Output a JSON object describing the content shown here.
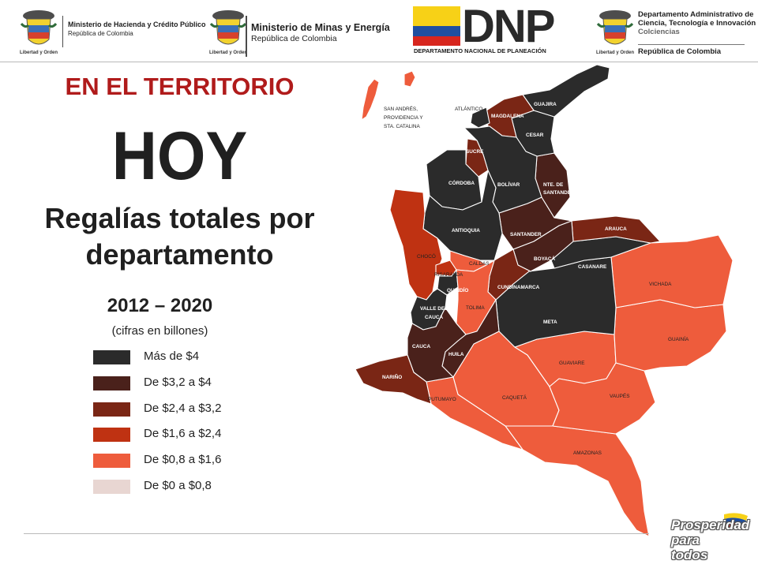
{
  "header": {
    "logos": [
      {
        "name": "Ministerio de Hacienda y Crédito Público",
        "line2": "República de Colombia",
        "seal_caption": "Libertad y Orden"
      },
      {
        "name": "Ministerio de Minas y Energía",
        "line2": "República de Colombia",
        "seal_caption": "Libertad y Orden"
      },
      {
        "name": "DNP",
        "line2": "DEPARTAMENTO NACIONAL DE PLANEACIÓN"
      },
      {
        "name": "Departamento Administrativo de Ciencia, Tecnología e Innovación",
        "name_l1": "Departamento Administrativo de",
        "name_l2": "Ciencia, Tecnología e Innovación",
        "name_l3": "Colciencias",
        "line2": "República de Colombia",
        "seal_caption": "Libertad y Orden"
      }
    ]
  },
  "titles": {
    "territorio": "EN EL TERRITORIO",
    "hoy": "HOY",
    "subtitle_l1": "Regalías totales por",
    "subtitle_l2": "departamento",
    "period": "2012 – 2020",
    "units": "(cifras en billones)"
  },
  "legend": [
    {
      "label": "Más de $4",
      "color": "#2b2b2b"
    },
    {
      "label": "De $3,2 a $4",
      "color": "#4a211b"
    },
    {
      "label": "De $2,4 a $3,2",
      "color": "#7a2615"
    },
    {
      "label": "De $1,6 a $2,4",
      "color": "#bf3212"
    },
    {
      "label": "De $0,8 a $1,6",
      "color": "#ee5c3c"
    },
    {
      "label": "De $0 a $0,8",
      "color": "#e8d6d2"
    }
  ],
  "map": {
    "labels": {
      "san_andres_l1": "SAN ANDRÉS,",
      "san_andres_l2": "PROVIDENCIA  Y",
      "san_andres_l3": "STA. CATALINA",
      "atlantico": "ATLÁNTICO",
      "guajira": "GUAJIRA",
      "magdalena": "MAGDALENA",
      "cesar": "CESAR",
      "sucre": "SUCRE",
      "cordoba": "CÓRDOBA",
      "bolivar": "BOLÍVAR",
      "nte_santander_l1": "NTE. DE",
      "nte_santander_l2": "SANTANDER",
      "antioquia": "ANTIOQUIA",
      "santander": "SANTANDER",
      "arauca": "ARAUCA",
      "choco": "CHOCÓ",
      "caldas": "CALDAS",
      "risaralda": "RISARALDA",
      "boyaca": "BOYACÁ",
      "casanare": "CASANARE",
      "quindio": "QUINDÍO",
      "cundinamarca": "CUNDINAMARCA",
      "vichada": "VICHADA",
      "valle_l1": "VALLE DEL",
      "valle_l2": "CAUCA",
      "tolima": "TOLIMA",
      "meta": "META",
      "guainia": "GUAINÍA",
      "cauca": "CAUCA",
      "huila": "HUILA",
      "guaviare": "GUAVIARE",
      "narino": "NARIÑO",
      "putumayo": "PUTUMAYO",
      "caqueta": "CAQUETÁ",
      "vaupes": "VAUPÉS",
      "amazonas": "AMAZONAS"
    }
  },
  "footer": {
    "badge_l1": "Prosperidad",
    "badge_l2": "para todos"
  }
}
